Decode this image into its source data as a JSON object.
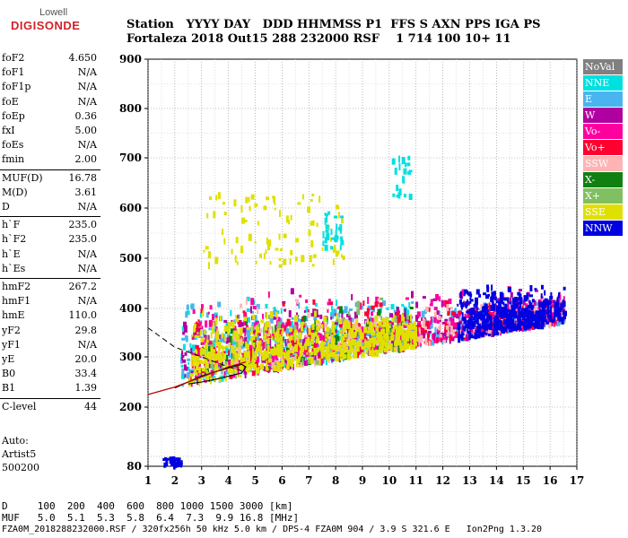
{
  "logo": {
    "line1": "Lowell",
    "line2": "DIGISONDE"
  },
  "header": {
    "line1": "Station   YYYY DAY   DDD HHMMSS P1  FFS S AXN PPS IGA PS",
    "line2": "Fortaleza 2018 Out15 288 232000 RSF    1 714 100 10+ 11"
  },
  "params": [
    {
      "label": "foF2",
      "value": "4.650"
    },
    {
      "label": "foF1",
      "value": "N/A"
    },
    {
      "label": "foF1p",
      "value": "N/A"
    },
    {
      "label": "foE",
      "value": "N/A"
    },
    {
      "label": "foEp",
      "value": "0.36"
    },
    {
      "label": "fxI",
      "value": "5.00"
    },
    {
      "label": "foEs",
      "value": "N/A"
    },
    {
      "label": "fmin",
      "value": "2.00"
    },
    {
      "label": "MUF(D)",
      "value": "16.78"
    },
    {
      "label": "M(D)",
      "value": "3.61"
    },
    {
      "label": "D",
      "value": "N/A"
    },
    {
      "label": "h`F",
      "value": "235.0"
    },
    {
      "label": "h`F2",
      "value": "235.0"
    },
    {
      "label": "h`E",
      "value": "N/A"
    },
    {
      "label": "h`Es",
      "value": "N/A"
    },
    {
      "label": "hmF2",
      "value": "267.2"
    },
    {
      "label": "hmF1",
      "value": "N/A"
    },
    {
      "label": "hmE",
      "value": "110.0"
    },
    {
      "label": "yF2",
      "value": "29.8"
    },
    {
      "label": "yF1",
      "value": "N/A"
    },
    {
      "label": "yE",
      "value": "20.0"
    },
    {
      "label": "B0",
      "value": "33.4"
    },
    {
      "label": "B1",
      "value": "1.39"
    },
    {
      "label": "C-level",
      "value": "44"
    }
  ],
  "auto": {
    "line1": "Auto:",
    "line2": "Artist5",
    "line3": "500200"
  },
  "legend": [
    {
      "label": "NoVal",
      "color": "#808080"
    },
    {
      "label": "NNE",
      "color": "#00e0e0"
    },
    {
      "label": "E",
      "color": "#4ab4f0"
    },
    {
      "label": "W",
      "color": "#b000a0"
    },
    {
      "label": "Vo-",
      "color": "#ff00a0"
    },
    {
      "label": "Vo+",
      "color": "#ff0030"
    },
    {
      "label": "SSW",
      "color": "#ffb4b4"
    },
    {
      "label": "X-",
      "color": "#108010"
    },
    {
      "label": "X+",
      "color": "#80c060"
    },
    {
      "label": "SSE",
      "color": "#e0e000"
    },
    {
      "label": "NNW",
      "color": "#0000e0"
    }
  ],
  "dtable": {
    "line1": "D     100  200  400  600  800 1000 1500 3000 [km]",
    "line2": "MUF   5.0  5.1  5.3  5.8  6.4  7.3  9.9 16.8 [MHz]"
  },
  "footer": "FZA0M_2018288232000.RSF / 320fx256h 50 kHz 5.0 km / DPS-4 FZA0M 904 / 3.9 S 321.6 E   Ion2Png 1.3.20",
  "chart_data": {
    "type": "scatter",
    "x_ticks": [
      "1",
      "2",
      "3",
      "4",
      "5",
      "6",
      "7",
      "8",
      "9",
      "10",
      "11",
      "12",
      "13",
      "14",
      "15",
      "16",
      "17"
    ],
    "y_ticks": [
      "80",
      "200",
      "300",
      "400",
      "500",
      "600",
      "700",
      "800",
      "900"
    ],
    "xlim": [
      1,
      17
    ],
    "y_scale": "log",
    "ylim": [
      80,
      900
    ],
    "grid": true,
    "clusters": [
      {
        "name": "NNE",
        "x": [
          2.2,
          10.8
        ],
        "y": [
          240,
          430
        ],
        "density": 260
      },
      {
        "name": "E",
        "x": [
          2.2,
          16.5
        ],
        "y": [
          240,
          420
        ],
        "density": 520
      },
      {
        "name": "W",
        "x": [
          2.2,
          16.5
        ],
        "y": [
          240,
          440
        ],
        "density": 420
      },
      {
        "name": "Vo-",
        "x": [
          2.5,
          16.5
        ],
        "y": [
          280,
          440
        ],
        "density": 380
      },
      {
        "name": "Vo+",
        "x": [
          2.5,
          16.5
        ],
        "y": [
          270,
          430
        ],
        "density": 260
      },
      {
        "name": "SSW",
        "x": [
          3.0,
          16.5
        ],
        "y": [
          270,
          430
        ],
        "density": 200
      },
      {
        "name": "X-",
        "x": [
          3.0,
          11.0
        ],
        "y": [
          260,
          420
        ],
        "density": 60
      },
      {
        "name": "X+",
        "x": [
          3.0,
          11.0
        ],
        "y": [
          260,
          420
        ],
        "density": 80
      },
      {
        "name": "SSE",
        "x": [
          2.5,
          11.0
        ],
        "y": [
          250,
          400
        ],
        "density": 620
      },
      {
        "name": "NNW",
        "x": [
          12.5,
          16.5
        ],
        "y": [
          280,
          450
        ],
        "density": 420
      },
      {
        "name": "SSE",
        "x": [
          3.0,
          8.3
        ],
        "y": [
          480,
          630
        ],
        "density": 90
      },
      {
        "name": "NNE",
        "x": [
          7.5,
          8.2
        ],
        "y": [
          520,
          600
        ],
        "density": 30
      },
      {
        "name": "NNE",
        "x": [
          10.0,
          10.8
        ],
        "y": [
          620,
          700
        ],
        "density": 20
      },
      {
        "name": "NNW",
        "x": [
          1.5,
          2.3
        ],
        "y": [
          80,
          95
        ],
        "density": 30
      }
    ],
    "profile_trace": [
      [
        1.0,
        225
      ],
      [
        2.0,
        240
      ],
      [
        3.0,
        260
      ],
      [
        4.0,
        280
      ],
      [
        4.65,
        290
      ]
    ],
    "dashed_trace": [
      [
        1.0,
        360
      ],
      [
        2.0,
        320
      ],
      [
        3.0,
        300
      ],
      [
        4.0,
        280
      ],
      [
        4.65,
        270
      ]
    ],
    "virtual_height_trace": [
      [
        2.0,
        238
      ],
      [
        2.5,
        250
      ],
      [
        3.0,
        262
      ],
      [
        3.5,
        270
      ],
      [
        4.0,
        278
      ],
      [
        4.5,
        285
      ],
      [
        4.65,
        280
      ],
      [
        4.5,
        268
      ],
      [
        3.5,
        255
      ],
      [
        3.0,
        250
      ],
      [
        2.5,
        246
      ]
    ]
  }
}
